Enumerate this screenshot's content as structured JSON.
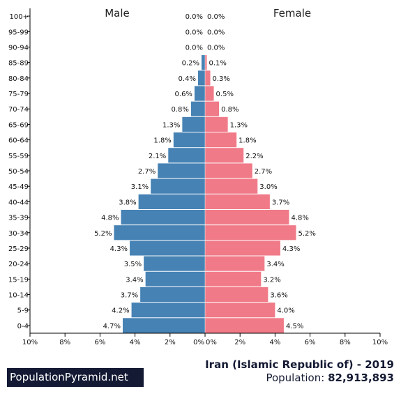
{
  "chart_data": {
    "type": "bar",
    "orientation": "horizontal-pyramid",
    "categories": [
      "100+",
      "95-99",
      "90-94",
      "85-89",
      "80-84",
      "75-79",
      "70-74",
      "65-69",
      "60-64",
      "55-59",
      "50-54",
      "45-49",
      "40-44",
      "35-39",
      "30-34",
      "25-29",
      "20-24",
      "15-19",
      "10-14",
      "5-9",
      "0-4"
    ],
    "series": [
      {
        "name": "Male",
        "color": "#4682b4",
        "values": [
          0.0,
          0.0,
          0.0,
          0.2,
          0.4,
          0.6,
          0.8,
          1.3,
          1.8,
          2.1,
          2.7,
          3.1,
          3.8,
          4.8,
          5.2,
          4.3,
          3.5,
          3.4,
          3.7,
          4.2,
          4.7
        ],
        "labels": [
          "0.0%",
          "0.0%",
          "0.0%",
          "0.2%",
          "0.4%",
          "0.6%",
          "0.8%",
          "1.3%",
          "1.8%",
          "2.1%",
          "2.7%",
          "3.1%",
          "3.8%",
          "4.8%",
          "5.2%",
          "4.3%",
          "3.5%",
          "3.4%",
          "3.7%",
          "4.2%",
          "4.7%"
        ]
      },
      {
        "name": "Female",
        "color": "#f07a88",
        "values": [
          0.0,
          0.0,
          0.0,
          0.1,
          0.3,
          0.5,
          0.8,
          1.3,
          1.8,
          2.2,
          2.7,
          3.0,
          3.7,
          4.8,
          5.2,
          4.3,
          3.4,
          3.2,
          3.6,
          4.0,
          4.5
        ],
        "labels": [
          "0.0%",
          "0.0%",
          "0.0%",
          "0.1%",
          "0.3%",
          "0.5%",
          "0.8%",
          "1.3%",
          "1.8%",
          "2.2%",
          "2.7%",
          "3.0%",
          "3.7%",
          "4.8%",
          "5.2%",
          "4.3%",
          "3.4%",
          "3.2%",
          "3.6%",
          "4.0%",
          "4.5%"
        ]
      }
    ],
    "xlim": [
      0,
      10
    ],
    "male_tick_labels": [
      "10%",
      "8%",
      "6%",
      "4%",
      "2%",
      "0%"
    ],
    "female_tick_labels": [
      "0%",
      "2%",
      "4%",
      "6%",
      "8%",
      "10%"
    ],
    "grid": false,
    "legend": "top"
  },
  "footer": {
    "brand": "PopulationPyramid.net",
    "country": "Iran (Islamic Republic of) - 2019",
    "population_label": "Population:",
    "population_value": "82,913,893"
  }
}
